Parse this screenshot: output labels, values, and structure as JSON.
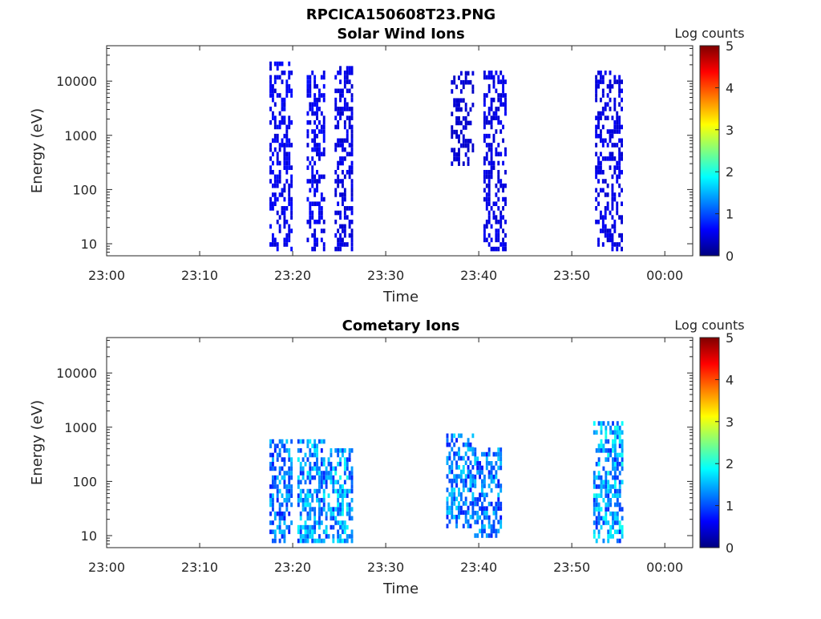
{
  "figure_title": "RPCICA150608T23.PNG",
  "colors": {
    "colormap": "jet",
    "axis": "#262626",
    "background": "#ffffff"
  },
  "chart_data": [
    {
      "type": "heatmap",
      "title": "Solar Wind Ions",
      "xlabel": "Time",
      "ylabel": "Energy (eV)",
      "colorbar_label": "Log counts",
      "colorbar_ticks": [
        "0",
        "1",
        "2",
        "3",
        "4",
        "5"
      ],
      "clim": [
        0,
        5
      ],
      "x_ticks": [
        "23:00",
        "23:10",
        "23:20",
        "23:30",
        "23:40",
        "23:50",
        "00:00"
      ],
      "xlim_minutes": [
        0,
        63
      ],
      "y_scale": "log",
      "y_ticks": [
        "10",
        "100",
        "1000",
        "10000"
      ],
      "ylim": [
        6,
        45000
      ],
      "bursts": [
        {
          "t_start": 17.5,
          "t_end": 20.0,
          "e_min": 8,
          "e_max": 20000,
          "level": 0.4
        },
        {
          "t_start": 21.5,
          "t_end": 23.5,
          "e_min": 8,
          "e_max": 15000,
          "level": 0.4
        },
        {
          "t_start": 24.5,
          "t_end": 26.5,
          "e_min": 8,
          "e_max": 18000,
          "level": 0.3
        },
        {
          "t_start": 37.0,
          "t_end": 39.5,
          "e_min": 300,
          "e_max": 14000,
          "level": 0.2
        },
        {
          "t_start": 40.5,
          "t_end": 42.8,
          "e_min": 8,
          "e_max": 14000,
          "level": 0.3
        },
        {
          "t_start": 52.5,
          "t_end": 55.5,
          "e_min": 8,
          "e_max": 14000,
          "level": 0.3
        }
      ]
    },
    {
      "type": "heatmap",
      "title": "Cometary Ions",
      "xlabel": "Time",
      "ylabel": "Energy (eV)",
      "colorbar_label": "Log counts",
      "colorbar_ticks": [
        "0",
        "1",
        "2",
        "3",
        "4",
        "5"
      ],
      "clim": [
        0,
        5
      ],
      "x_ticks": [
        "23:00",
        "23:10",
        "23:20",
        "23:30",
        "23:40",
        "23:50",
        "00:00"
      ],
      "xlim_minutes": [
        0,
        63
      ],
      "y_scale": "log",
      "y_ticks": [
        "10",
        "100",
        "1000",
        "10000"
      ],
      "ylim": [
        6,
        45000
      ],
      "bursts": [
        {
          "t_start": 17.5,
          "t_end": 20.0,
          "e_min": 8,
          "e_max": 500,
          "level": 1.2
        },
        {
          "t_start": 20.5,
          "t_end": 23.5,
          "e_min": 8,
          "e_max": 500,
          "level": 1.4
        },
        {
          "t_start": 23.5,
          "t_end": 26.5,
          "e_min": 8,
          "e_max": 400,
          "level": 1.5
        },
        {
          "t_start": 36.5,
          "t_end": 39.5,
          "e_min": 15,
          "e_max": 700,
          "level": 1.3
        },
        {
          "t_start": 39.5,
          "t_end": 42.5,
          "e_min": 10,
          "e_max": 400,
          "level": 1.2
        },
        {
          "t_start": 52.3,
          "t_end": 55.5,
          "e_min": 8,
          "e_max": 1200,
          "level": 1.5
        }
      ]
    }
  ]
}
